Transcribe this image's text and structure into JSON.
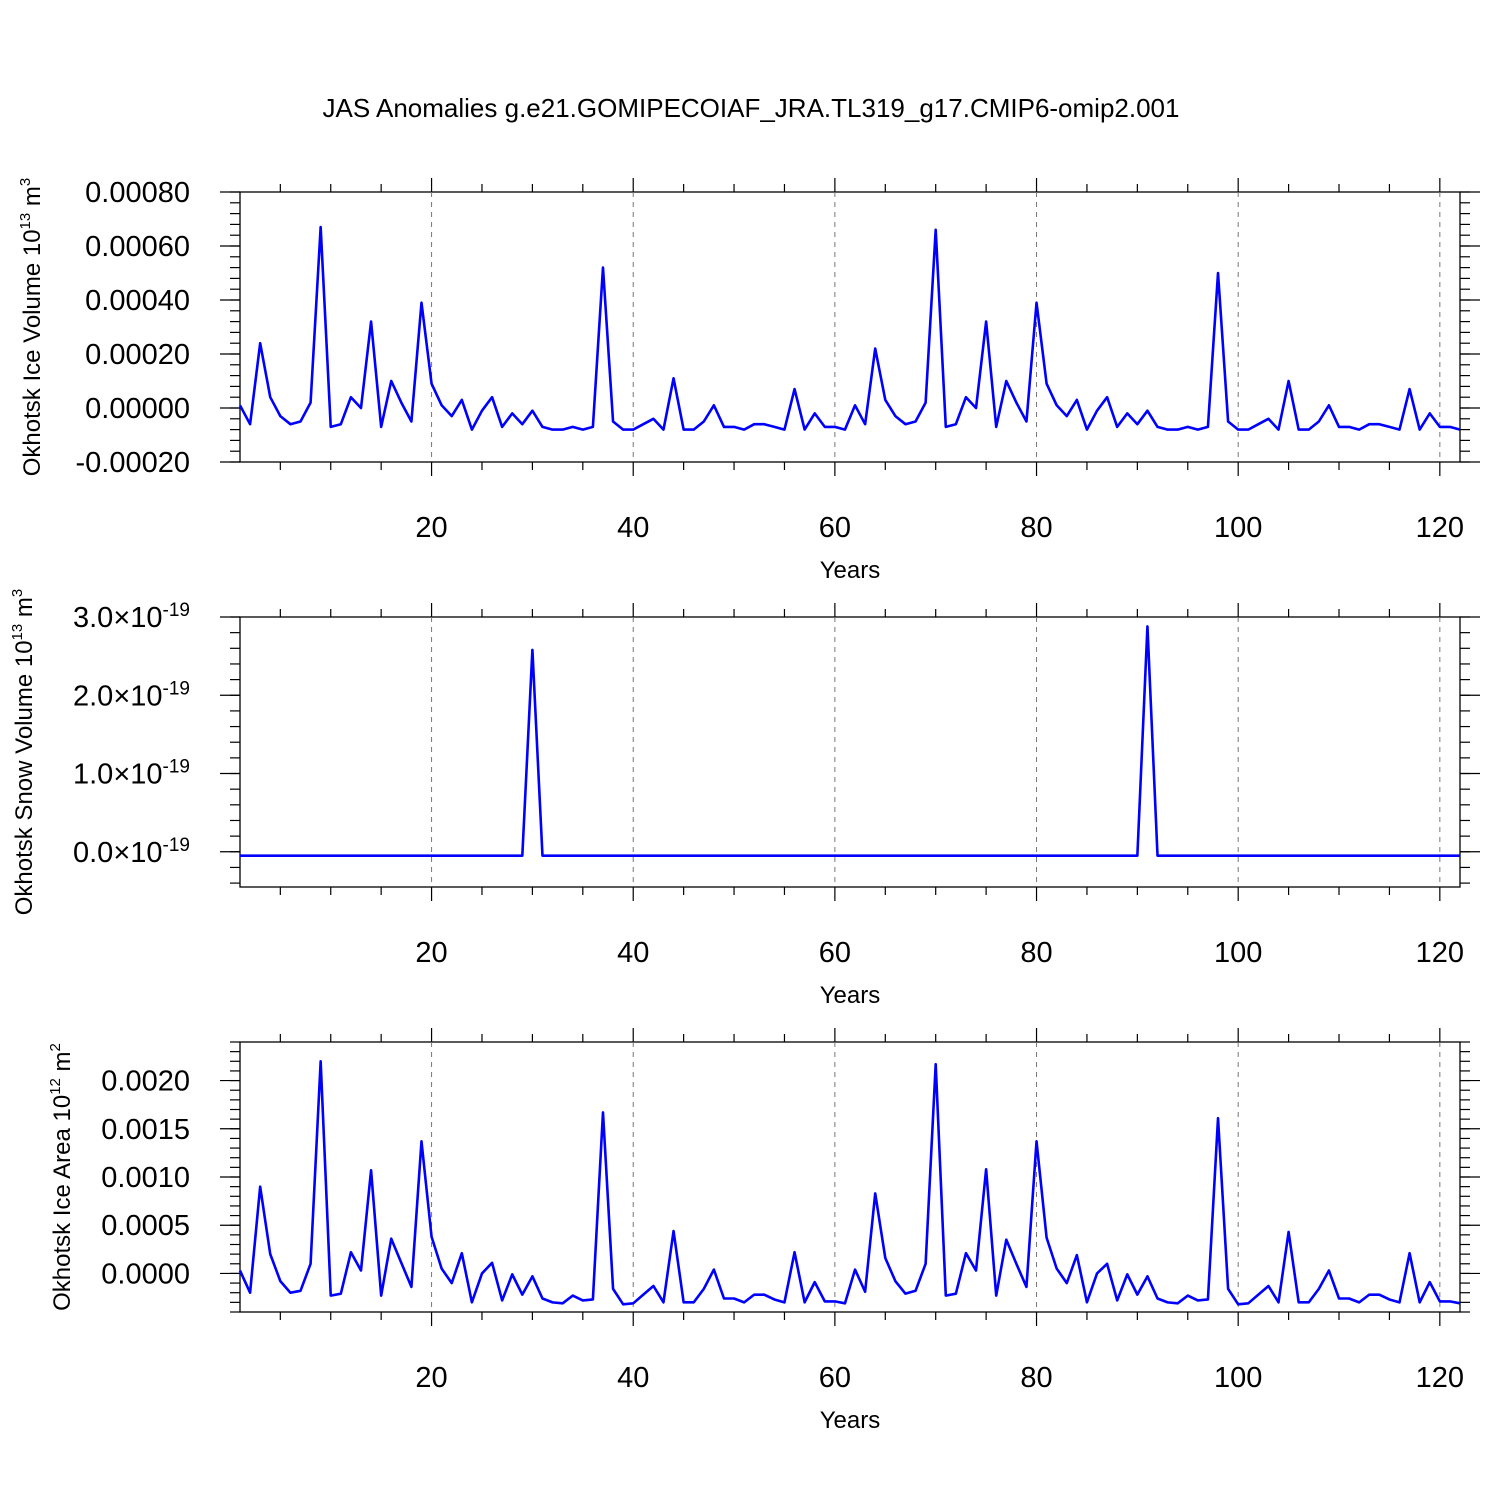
{
  "figure": {
    "title": "JAS Anomalies g.e21.GOMIPECOIAF_JRA.TL319_g17.CMIP6-omip2.001"
  },
  "colors": {
    "line": "#0000ff",
    "grid": "#777777",
    "axes": "#000000"
  },
  "chart_data": [
    {
      "type": "line",
      "ylabel": "Okhotsk Ice Volume 10^13 m^3",
      "ylabel_parts": {
        "base": "Okhotsk Ice Volume 10",
        "sup1": "13",
        "mid": " m",
        "sup2": "3"
      },
      "xlabel": "Years",
      "xlim": [
        1,
        122
      ],
      "ylim": [
        -0.0002,
        0.0008
      ],
      "y_ticks": [
        {
          "value": -0.0002,
          "label": "-0.00020"
        },
        {
          "value": 0.0,
          "label": "0.00000"
        },
        {
          "value": 0.0002,
          "label": "0.00020"
        },
        {
          "value": 0.0004,
          "label": "0.00040"
        },
        {
          "value": 0.0006,
          "label": "0.00060"
        },
        {
          "value": 0.0008,
          "label": "0.00080"
        }
      ],
      "x_ticks": [
        20,
        40,
        60,
        80,
        100,
        120
      ],
      "grid": "vertical dashed at major x ticks",
      "series": [
        {
          "values": [
            1e-05,
            -6e-05,
            0.00024,
            4e-05,
            -3e-05,
            -6e-05,
            -5e-05,
            2e-05,
            0.00067,
            -7e-05,
            -6e-05,
            4e-05,
            0.0,
            0.00032,
            -7e-05,
            0.0001,
            2e-05,
            -5e-05,
            0.00039,
            9e-05,
            1e-05,
            -3e-05,
            3e-05,
            -8e-05,
            -1e-05,
            4e-05,
            -7e-05,
            -2e-05,
            -6e-05,
            -1e-05,
            -7e-05,
            -8e-05,
            -8e-05,
            -7e-05,
            -8e-05,
            -7e-05,
            0.00052,
            -5e-05,
            -8e-05,
            -8e-05,
            -6e-05,
            -4e-05,
            -8e-05,
            0.00011,
            -8e-05,
            -8e-05,
            -5e-05,
            1e-05,
            -7e-05,
            -7e-05,
            -8e-05,
            -6e-05,
            -6e-05,
            -7e-05,
            -8e-05,
            7e-05,
            -8e-05,
            -2e-05,
            -7e-05,
            -7e-05,
            -8e-05,
            1e-05,
            -6e-05,
            0.00022,
            3e-05,
            -3e-05,
            -6e-05,
            -5e-05,
            2e-05,
            0.00066,
            -7e-05,
            -6e-05,
            4e-05,
            0.0,
            0.00032,
            -7e-05,
            0.0001,
            2e-05,
            -5e-05,
            0.00039,
            9e-05,
            1e-05,
            -3e-05,
            3e-05,
            -8e-05,
            -1e-05,
            4e-05,
            -7e-05,
            -2e-05,
            -6e-05,
            -1e-05,
            -7e-05,
            -8e-05,
            -8e-05,
            -7e-05,
            -8e-05,
            -7e-05,
            0.0005,
            -5e-05,
            -8e-05,
            -8e-05,
            -6e-05,
            -4e-05,
            -8e-05,
            0.0001,
            -8e-05,
            -8e-05,
            -5e-05,
            1e-05,
            -7e-05,
            -7e-05,
            -8e-05,
            -6e-05,
            -6e-05,
            -7e-05,
            -8e-05,
            7e-05,
            -8e-05,
            -2e-05,
            -7e-05,
            -7e-05,
            -8e-05
          ]
        }
      ]
    },
    {
      "type": "line",
      "ylabel": "Okhotsk Snow Volume 10^13 m^3",
      "ylabel_parts": {
        "base": "Okhotsk Snow Volume 10",
        "sup1": "13",
        "mid": " m",
        "sup2": "3"
      },
      "xlabel": "Years",
      "xlim": [
        1,
        122
      ],
      "ylim": [
        -4.5e-20,
        3e-19
      ],
      "y_ticks": [
        {
          "value": 0.0,
          "mantissa": "0.0",
          "times": "×10",
          "exponent": "-19"
        },
        {
          "value": 1e-19,
          "mantissa": "1.0",
          "times": "×10",
          "exponent": "-19"
        },
        {
          "value": 2e-19,
          "mantissa": "2.0",
          "times": "×10",
          "exponent": "-19"
        },
        {
          "value": 3e-19,
          "mantissa": "3.0",
          "times": "×10",
          "exponent": "-19"
        }
      ],
      "x_ticks": [
        20,
        40,
        60,
        80,
        100,
        120
      ],
      "grid": "vertical dashed at major x ticks",
      "series": [
        {
          "baseline": -5e-21,
          "spikes": [
            {
              "x": 30,
              "value": 2.58e-19
            },
            {
              "x": 91,
              "value": 2.88e-19
            }
          ]
        }
      ]
    },
    {
      "type": "line",
      "ylabel": "Okhotsk Ice Area 10^12 m^2",
      "ylabel_parts": {
        "base": "Okhotsk Ice Area 10",
        "sup1": "12",
        "mid": " m",
        "sup2": "2"
      },
      "xlabel": "Years",
      "xlim": [
        1,
        122
      ],
      "ylim": [
        -0.0004,
        0.0024
      ],
      "y_ticks": [
        {
          "value": 0.0,
          "label": "0.0000"
        },
        {
          "value": 0.0005,
          "label": "0.0005"
        },
        {
          "value": 0.001,
          "label": "0.0010"
        },
        {
          "value": 0.0015,
          "label": "0.0015"
        },
        {
          "value": 0.002,
          "label": "0.0020"
        }
      ],
      "x_ticks": [
        20,
        40,
        60,
        80,
        100,
        120
      ],
      "grid": "vertical dashed at major x ticks",
      "series": [
        {
          "values": [
            3e-05,
            -0.0002,
            0.0009,
            0.0002,
            -8e-05,
            -0.0002,
            -0.00018,
            0.0001,
            0.0022,
            -0.00023,
            -0.00021,
            0.00022,
            3e-05,
            0.00107,
            -0.00023,
            0.00036,
            0.00011,
            -0.00014,
            0.00137,
            0.00038,
            5e-05,
            -0.0001,
            0.00021,
            -0.0003,
            0.0,
            0.00011,
            -0.00028,
            -1e-05,
            -0.00022,
            -3e-05,
            -0.00026,
            -0.0003,
            -0.00031,
            -0.00023,
            -0.00028,
            -0.00027,
            0.00167,
            -0.00016,
            -0.00032,
            -0.00031,
            -0.00022,
            -0.00013,
            -0.0003,
            0.00044,
            -0.0003,
            -0.0003,
            -0.00016,
            4e-05,
            -0.00026,
            -0.00026,
            -0.0003,
            -0.00022,
            -0.00022,
            -0.00027,
            -0.0003,
            0.00022,
            -0.0003,
            -9e-05,
            -0.00029,
            -0.00029,
            -0.00031,
            4e-05,
            -0.00019,
            0.00083,
            0.00016,
            -8e-05,
            -0.00021,
            -0.00018,
            0.0001,
            0.00217,
            -0.00023,
            -0.00021,
            0.00021,
            3e-05,
            0.00108,
            -0.00023,
            0.00035,
            0.0001,
            -0.00014,
            0.00137,
            0.00037,
            5e-05,
            -0.0001,
            0.00019,
            -0.0003,
            0.0,
            0.0001,
            -0.00028,
            -1e-05,
            -0.00022,
            -3e-05,
            -0.00026,
            -0.0003,
            -0.00031,
            -0.00023,
            -0.00028,
            -0.00027,
            0.00161,
            -0.00016,
            -0.00032,
            -0.00031,
            -0.00022,
            -0.00013,
            -0.0003,
            0.00043,
            -0.0003,
            -0.0003,
            -0.00016,
            3e-05,
            -0.00026,
            -0.00026,
            -0.0003,
            -0.00022,
            -0.00022,
            -0.00027,
            -0.0003,
            0.00021,
            -0.0003,
            -9e-05,
            -0.00029,
            -0.00029,
            -0.00031
          ]
        }
      ]
    }
  ]
}
